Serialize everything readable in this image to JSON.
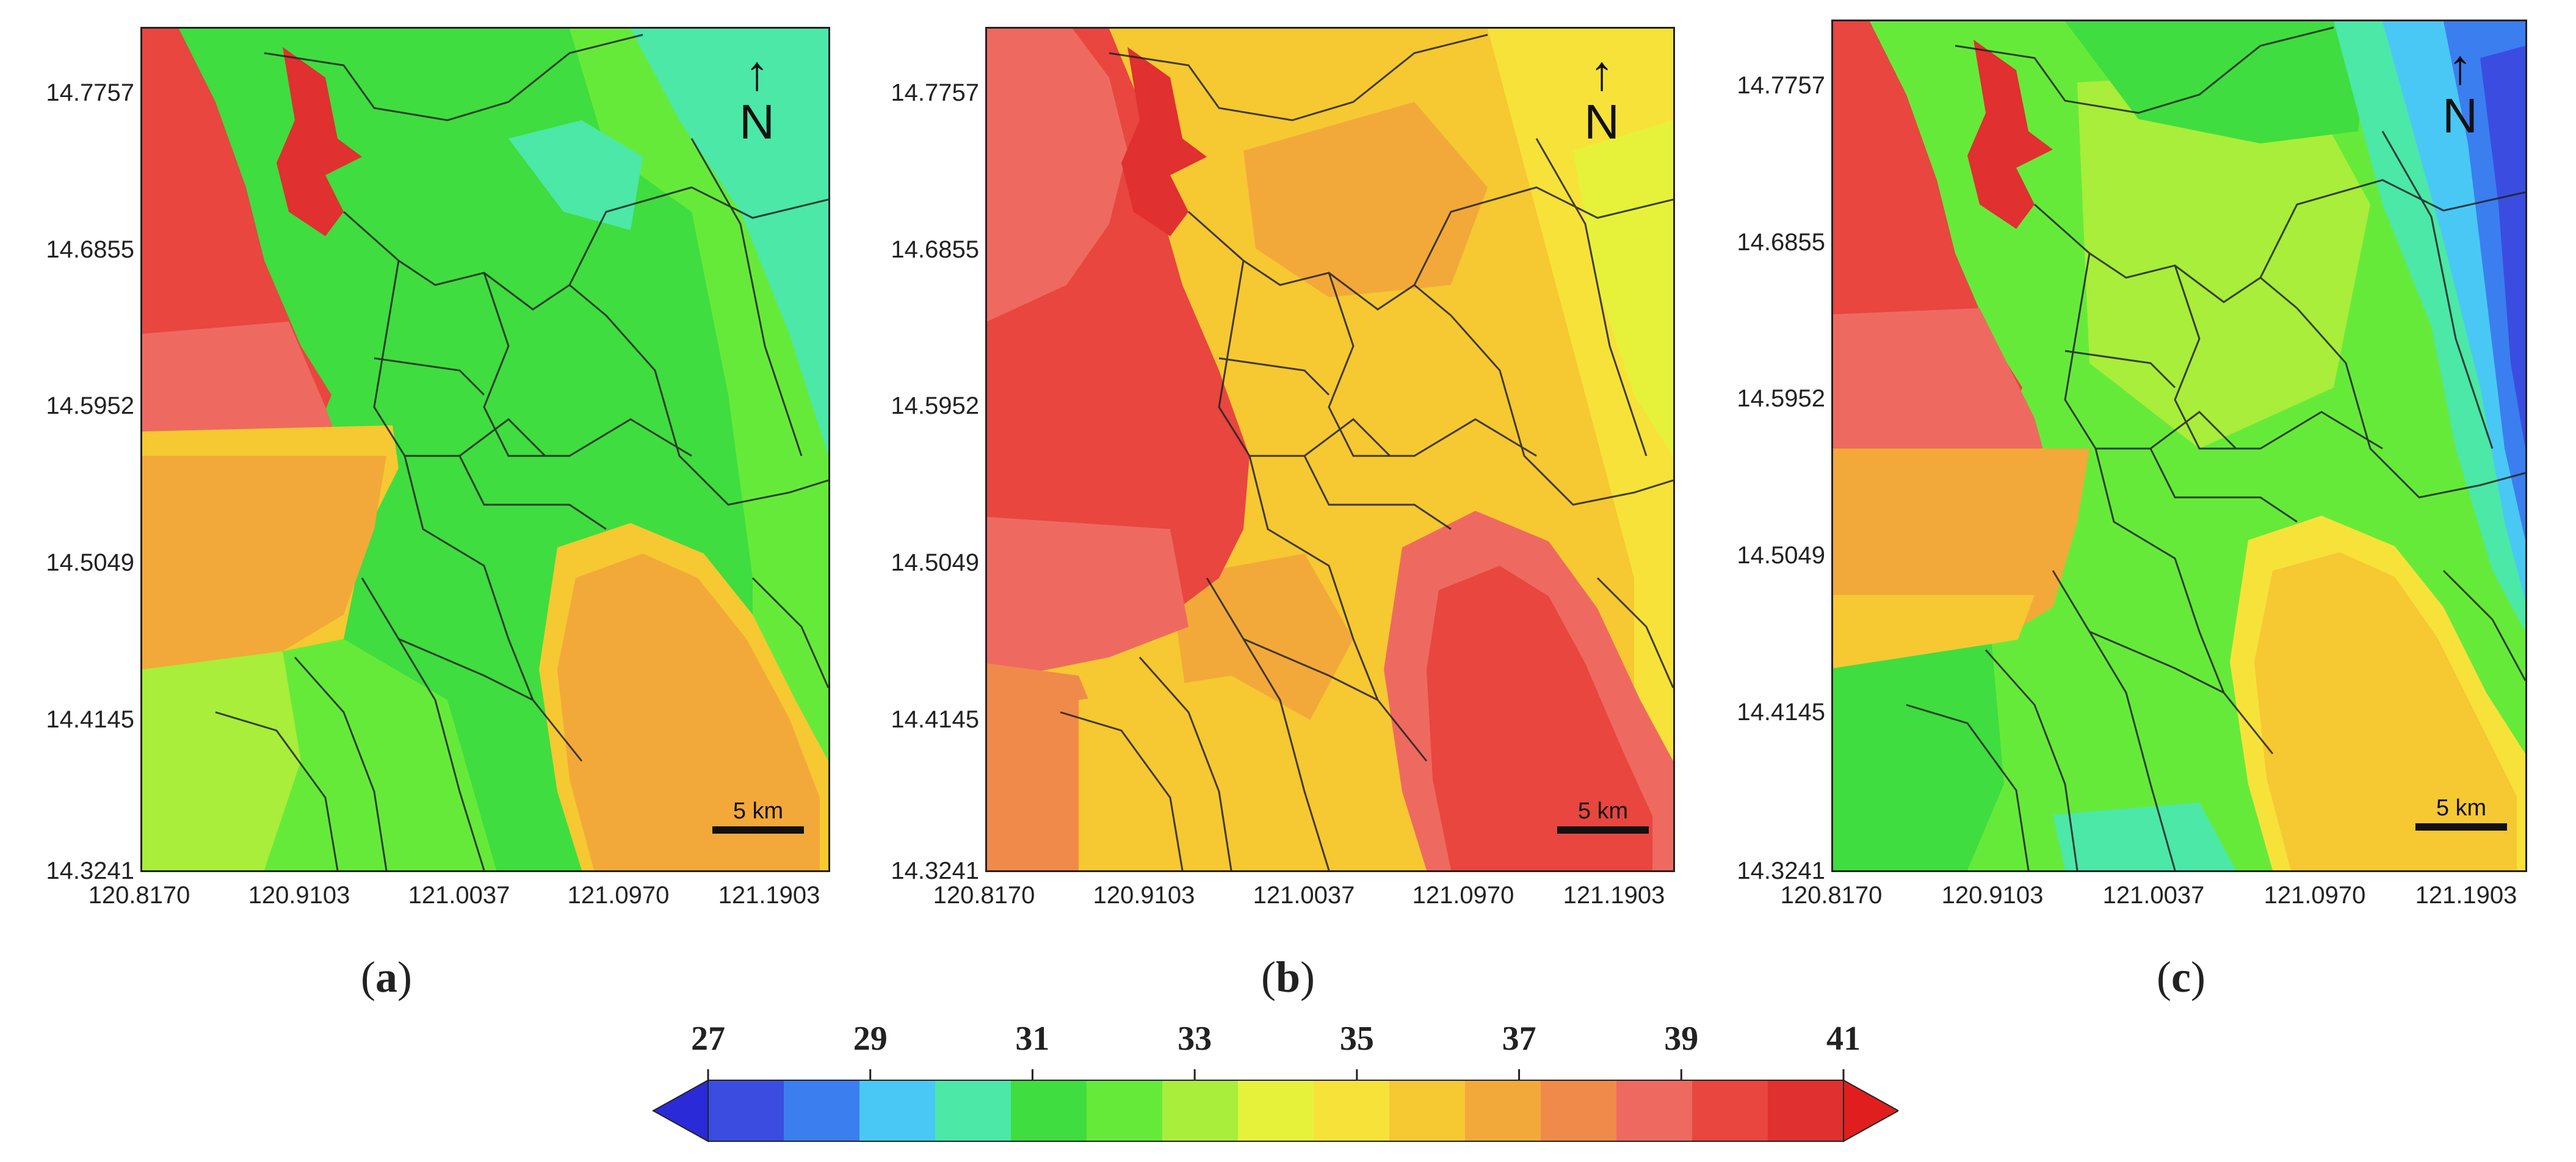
{
  "panels": [
    {
      "label": "a",
      "north_label": "N",
      "scale_label": "5 km",
      "y_ticks": [
        "14.7757",
        "14.6855",
        "14.5952",
        "14.5049",
        "14.4145",
        "14.3241"
      ],
      "x_ticks": [
        "120.8170",
        "120.9103",
        "121.0037",
        "121.0970",
        "121.1903"
      ],
      "description_levels": {
        "bay": 40,
        "inland": 31,
        "east_edge": 30,
        "south_bay": 37,
        "southwest": 37
      }
    },
    {
      "label": "b",
      "north_label": "N",
      "scale_label": "5 km",
      "y_ticks": [
        "14.7757",
        "14.6855",
        "14.5952",
        "14.5049",
        "14.4145",
        "14.3241"
      ],
      "x_ticks": [
        "120.8170",
        "120.9103",
        "121.0037",
        "121.0970",
        "121.1903"
      ],
      "description_levels": {
        "bay": 41,
        "inland": 37,
        "east_edge": 35,
        "south_bay": 40,
        "southwest": 39
      }
    },
    {
      "label": "c",
      "north_label": "N",
      "scale_label": "5 km",
      "y_ticks": [
        "14.7757",
        "14.6855",
        "14.5952",
        "14.5049",
        "14.4145",
        "14.3241"
      ],
      "x_ticks": [
        "120.8170",
        "120.9103",
        "121.0037",
        "121.0970",
        "121.1903"
      ],
      "description_levels": {
        "bay": 41,
        "inland": 33,
        "east_edge": 28,
        "south_bay": 37,
        "southwest": 38
      }
    }
  ],
  "colorbar": {
    "tick_labels": [
      "27",
      "29",
      "31",
      "33",
      "35",
      "37",
      "39",
      "41"
    ],
    "min": 27,
    "max": 41,
    "colors": [
      "#3a4de0",
      "#3b7ef0",
      "#49c8f5",
      "#4be8a8",
      "#3fdd3f",
      "#66ea3a",
      "#a8ee3a",
      "#e6f23a",
      "#f7e23a",
      "#f6c832",
      "#f2a93a",
      "#f08a4a",
      "#ee6a60",
      "#e8463f",
      "#e03030"
    ],
    "under_color": "#2a2ad8",
    "over_color": "#e01e1e"
  }
}
